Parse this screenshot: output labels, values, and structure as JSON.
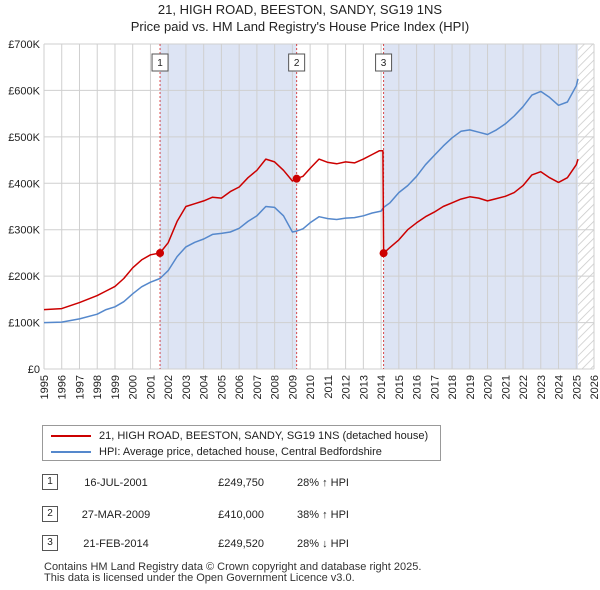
{
  "title_line1": "21, HIGH ROAD, BEESTON, SANDY, SG19 1NS",
  "title_line2": "Price paid vs. HM Land Registry's House Price Index (HPI)",
  "chart_data": {
    "type": "line",
    "x_range": [
      1995,
      2026
    ],
    "ylim": [
      0,
      700000
    ],
    "y_ticks": [
      0,
      100000,
      200000,
      300000,
      400000,
      500000,
      600000,
      700000
    ],
    "y_tick_labels": [
      "£0",
      "£100K",
      "£200K",
      "£300K",
      "£400K",
      "£500K",
      "£600K",
      "£700K"
    ],
    "x_tick_labels": [
      "1995",
      "1996",
      "1997",
      "1998",
      "1999",
      "2000",
      "2001",
      "2002",
      "2003",
      "2004",
      "2005",
      "2006",
      "2007",
      "2008",
      "2009",
      "2010",
      "2011",
      "2012",
      "2013",
      "2014",
      "2015",
      "2016",
      "2017",
      "2018",
      "2019",
      "2020",
      "2021",
      "2022",
      "2023",
      "2024",
      "2025",
      "2026"
    ],
    "series": [
      {
        "name": "21, HIGH ROAD, BEESTON, SANDY, SG19 1NS (detached house)",
        "color": "#cc0000",
        "points": [
          [
            1995,
            128000
          ],
          [
            1996,
            130000
          ],
          [
            1997,
            143000
          ],
          [
            1998,
            158000
          ],
          [
            1998.5,
            168000
          ],
          [
            1999,
            178000
          ],
          [
            1999.5,
            195000
          ],
          [
            2000,
            218000
          ],
          [
            2000.5,
            235000
          ],
          [
            2001,
            246000
          ],
          [
            2001.54,
            249750
          ],
          [
            2002,
            272000
          ],
          [
            2002.5,
            318000
          ],
          [
            2003,
            350000
          ],
          [
            2003.5,
            356000
          ],
          [
            2004,
            362000
          ],
          [
            2004.5,
            370000
          ],
          [
            2005,
            368000
          ],
          [
            2005.5,
            382000
          ],
          [
            2006,
            392000
          ],
          [
            2006.5,
            412000
          ],
          [
            2007,
            428000
          ],
          [
            2007.5,
            452000
          ],
          [
            2008,
            446000
          ],
          [
            2008.5,
            428000
          ],
          [
            2009,
            405000
          ],
          [
            2009.24,
            410000
          ],
          [
            2009.6,
            415000
          ],
          [
            2010,
            432000
          ],
          [
            2010.5,
            452000
          ],
          [
            2011,
            445000
          ],
          [
            2011.5,
            442000
          ],
          [
            2012,
            446000
          ],
          [
            2012.5,
            444000
          ],
          [
            2013,
            452000
          ],
          [
            2013.5,
            462000
          ],
          [
            2013.9,
            470000
          ],
          [
            2014.1,
            470000
          ],
          [
            2014.14,
            249520
          ],
          [
            2014.5,
            262000
          ],
          [
            2015,
            278000
          ],
          [
            2015.5,
            300000
          ],
          [
            2016,
            315000
          ],
          [
            2016.5,
            328000
          ],
          [
            2017,
            338000
          ],
          [
            2017.5,
            350000
          ],
          [
            2018,
            358000
          ],
          [
            2018.5,
            366000
          ],
          [
            2019,
            371000
          ],
          [
            2019.5,
            368000
          ],
          [
            2020,
            362000
          ],
          [
            2020.5,
            367000
          ],
          [
            2021,
            372000
          ],
          [
            2021.5,
            380000
          ],
          [
            2022,
            395000
          ],
          [
            2022.5,
            418000
          ],
          [
            2023,
            425000
          ],
          [
            2023.5,
            412000
          ],
          [
            2024,
            402000
          ],
          [
            2024.5,
            412000
          ],
          [
            2025,
            440000
          ],
          [
            2025.1,
            452000
          ]
        ]
      },
      {
        "name": "HPI: Average price, detached house, Central Bedfordshire",
        "color": "#5588cc",
        "points": [
          [
            1995,
            100000
          ],
          [
            1996,
            101000
          ],
          [
            1997,
            108000
          ],
          [
            1998,
            118000
          ],
          [
            1998.5,
            128000
          ],
          [
            1999,
            134000
          ],
          [
            1999.5,
            145000
          ],
          [
            2000,
            162000
          ],
          [
            2000.5,
            177000
          ],
          [
            2001,
            187000
          ],
          [
            2001.54,
            195000
          ],
          [
            2002,
            212000
          ],
          [
            2002.5,
            242000
          ],
          [
            2003,
            263000
          ],
          [
            2003.5,
            273000
          ],
          [
            2004,
            280000
          ],
          [
            2004.5,
            290000
          ],
          [
            2005,
            292000
          ],
          [
            2005.5,
            295000
          ],
          [
            2006,
            303000
          ],
          [
            2006.5,
            318000
          ],
          [
            2007,
            330000
          ],
          [
            2007.5,
            350000
          ],
          [
            2008,
            348000
          ],
          [
            2008.5,
            330000
          ],
          [
            2009,
            295000
          ],
          [
            2009.24,
            297000
          ],
          [
            2009.6,
            302000
          ],
          [
            2010,
            315000
          ],
          [
            2010.5,
            328000
          ],
          [
            2011,
            324000
          ],
          [
            2011.5,
            322000
          ],
          [
            2012,
            325000
          ],
          [
            2012.5,
            326000
          ],
          [
            2013,
            330000
          ],
          [
            2013.5,
            336000
          ],
          [
            2014,
            340000
          ],
          [
            2014.14,
            348000
          ],
          [
            2014.5,
            358000
          ],
          [
            2015,
            380000
          ],
          [
            2015.5,
            395000
          ],
          [
            2016,
            415000
          ],
          [
            2016.5,
            440000
          ],
          [
            2017,
            460000
          ],
          [
            2017.5,
            480000
          ],
          [
            2018,
            498000
          ],
          [
            2018.5,
            512000
          ],
          [
            2019,
            515000
          ],
          [
            2019.5,
            510000
          ],
          [
            2020,
            505000
          ],
          [
            2020.5,
            515000
          ],
          [
            2021,
            528000
          ],
          [
            2021.5,
            545000
          ],
          [
            2022,
            565000
          ],
          [
            2022.5,
            590000
          ],
          [
            2023,
            598000
          ],
          [
            2023.5,
            585000
          ],
          [
            2024,
            568000
          ],
          [
            2024.5,
            575000
          ],
          [
            2025,
            610000
          ],
          [
            2025.1,
            625000
          ]
        ]
      }
    ],
    "sales": [
      {
        "label": "1",
        "x": 2001.54,
        "price": 249750
      },
      {
        "label": "2",
        "x": 2009.24,
        "price": 410000
      },
      {
        "label": "3",
        "x": 2014.14,
        "price": 249520
      }
    ],
    "forecast_start": 2025.1
  },
  "legend": {
    "item1": "21, HIGH ROAD, BEESTON, SANDY, SG19 1NS (detached house)",
    "item2": "HPI: Average price, detached house, Central Bedfordshire"
  },
  "transactions": [
    {
      "num": "1",
      "date": "16-JUL-2001",
      "price": "£249,750",
      "delta": "28% ↑ HPI"
    },
    {
      "num": "2",
      "date": "27-MAR-2009",
      "price": "£410,000",
      "delta": "38% ↑ HPI"
    },
    {
      "num": "3",
      "date": "21-FEB-2014",
      "price": "£249,520",
      "delta": "28% ↓ HPI"
    }
  ],
  "footer": {
    "line1": "Contains HM Land Registry data © Crown copyright and database right 2025.",
    "line2": "This data is licensed under the Open Government Licence v3.0."
  }
}
